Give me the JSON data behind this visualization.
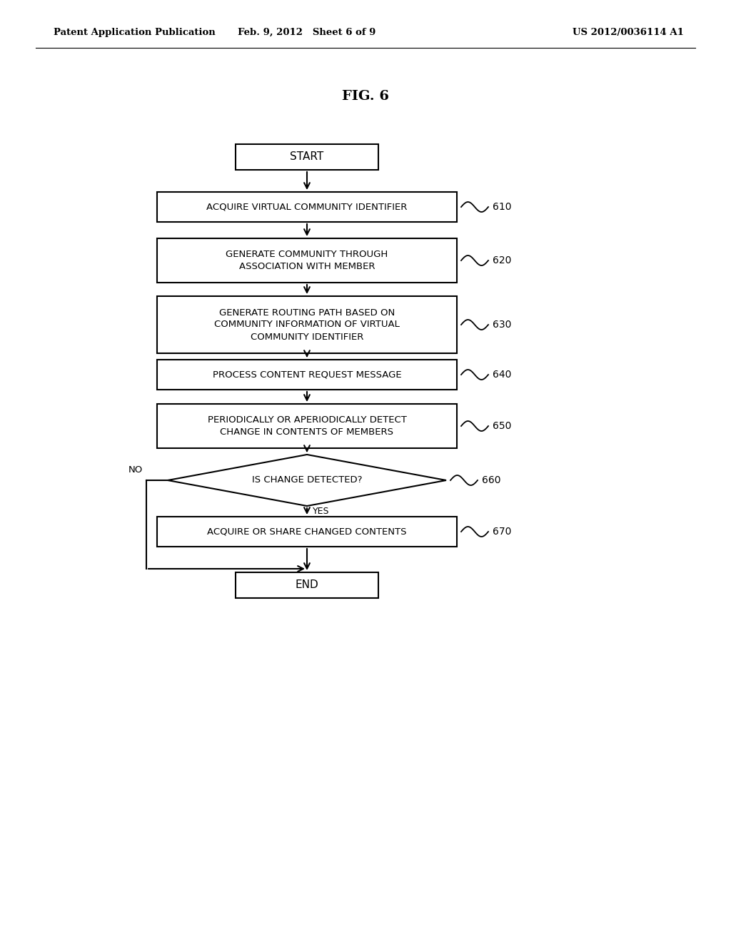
{
  "title": "FIG. 6",
  "header_left": "Patent Application Publication",
  "header_center": "Feb. 9, 2012   Sheet 6 of 9",
  "header_right": "US 2012/0036114 A1",
  "background_color": "#ffffff",
  "text_color": "#000000",
  "start_label": "START",
  "end_label": "END",
  "box_610": "ACQUIRE VIRTUAL COMMUNITY IDENTIFIER",
  "box_620": "GENERATE COMMUNITY THROUGH\nASSOCIATION WITH MEMBER",
  "box_630": "GENERATE ROUTING PATH BASED ON\nCOMMUNITY INFORMATION OF VIRTUAL\nCOMMUNITY IDENTIFIER",
  "box_640": "PROCESS CONTENT REQUEST MESSAGE",
  "box_650": "PERIODICALLY OR APERIODICALLY DETECT\nCHANGE IN CONTENTS OF MEMBERS",
  "diamond_660": "IS CHANGE DETECTED?",
  "box_670": "ACQUIRE OR SHARE CHANGED CONTENTS",
  "ref_610": "610",
  "ref_620": "620",
  "ref_630": "630",
  "ref_640": "640",
  "ref_650": "650",
  "ref_660": "660",
  "ref_670": "670",
  "yes_label": "YES",
  "no_label": "NO"
}
